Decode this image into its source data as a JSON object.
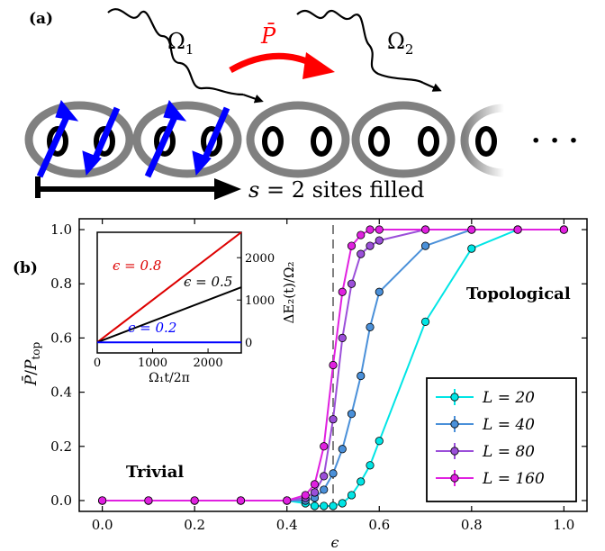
{
  "panel_a": {
    "label": "(a)",
    "omega1": "Ω",
    "omega1_sub": "1",
    "omega2": "Ω",
    "omega2_sub": "2",
    "pbar": "P̄",
    "filled_math": "s",
    "filled_text": " = 2 sites filled",
    "ellipsis": "· · ·",
    "colors": {
      "arrow": "#ff0000",
      "spin": "#0000ff",
      "ring": "#808080"
    }
  },
  "panel_b": {
    "label": "(b)",
    "xlabel": "ϵ",
    "ylabel_num": "P̄",
    "ylabel_den": "P",
    "ylabel_den_sub": "top",
    "trivial": "Trivial",
    "topological": "Topological",
    "crit_eps": 0.5
  },
  "chart_data": [
    {
      "type": "line",
      "xlim": [
        -0.05,
        1.05
      ],
      "ylim": [
        -0.04,
        1.04
      ],
      "xticks": [
        "0.0",
        "0.2",
        "0.4",
        "0.6",
        "0.8",
        "1.0"
      ],
      "yticks": [
        "0.0",
        "0.2",
        "0.4",
        "0.6",
        "0.8",
        "1.0"
      ],
      "xlabel": "ϵ",
      "ylabel": "P̄/P_top",
      "legend_position": "lower-right",
      "series": [
        {
          "name": "L = 20",
          "color": "#00e5e5",
          "x": [
            0.0,
            0.1,
            0.2,
            0.3,
            0.4,
            0.44,
            0.46,
            0.48,
            0.5,
            0.52,
            0.54,
            0.56,
            0.58,
            0.6,
            0.7,
            0.8,
            0.9,
            1.0
          ],
          "y": [
            0.0,
            0.0,
            0.0,
            0.0,
            0.0,
            -0.01,
            -0.02,
            -0.02,
            -0.02,
            -0.01,
            0.02,
            0.07,
            0.13,
            0.22,
            0.66,
            0.93,
            1.0,
            1.0
          ]
        },
        {
          "name": "L = 40",
          "color": "#4a90d9",
          "x": [
            0.0,
            0.1,
            0.2,
            0.3,
            0.4,
            0.44,
            0.46,
            0.48,
            0.5,
            0.52,
            0.54,
            0.56,
            0.58,
            0.6,
            0.7,
            0.8,
            0.9,
            1.0
          ],
          "y": [
            0.0,
            0.0,
            0.0,
            0.0,
            0.0,
            0.0,
            0.01,
            0.04,
            0.1,
            0.19,
            0.32,
            0.46,
            0.64,
            0.77,
            0.94,
            1.0,
            1.0,
            1.0
          ]
        },
        {
          "name": "L = 80",
          "color": "#9b4fd9",
          "x": [
            0.0,
            0.1,
            0.2,
            0.3,
            0.4,
            0.44,
            0.46,
            0.48,
            0.5,
            0.52,
            0.54,
            0.56,
            0.58,
            0.6,
            0.7,
            0.8,
            0.9,
            1.0
          ],
          "y": [
            0.0,
            0.0,
            0.0,
            0.0,
            0.0,
            0.01,
            0.03,
            0.09,
            0.3,
            0.6,
            0.8,
            0.91,
            0.94,
            0.96,
            1.0,
            1.0,
            1.0,
            1.0
          ]
        },
        {
          "name": "L = 160",
          "color": "#e020e0",
          "x": [
            0.0,
            0.1,
            0.2,
            0.3,
            0.4,
            0.44,
            0.46,
            0.48,
            0.5,
            0.52,
            0.54,
            0.56,
            0.58,
            0.6,
            0.7,
            0.8,
            0.9,
            1.0
          ],
          "y": [
            0.0,
            0.0,
            0.0,
            0.0,
            0.0,
            0.02,
            0.06,
            0.2,
            0.5,
            0.77,
            0.94,
            0.98,
            1.0,
            1.0,
            1.0,
            1.0,
            1.0,
            1.0
          ]
        }
      ]
    },
    {
      "type": "line",
      "xlim": [
        0,
        2600
      ],
      "ylim": [
        -250,
        2600
      ],
      "xticks": [
        "0",
        "1000",
        "2000"
      ],
      "yticks": [
        "0",
        "1000",
        "2000"
      ],
      "xlabel": "Ω₁t/2π",
      "ylabel": "ΔE₂(t)/Ω₂",
      "series": [
        {
          "name": "ϵ = 0.8",
          "color": "#dd0000",
          "x": [
            0,
            2600
          ],
          "y": [
            0,
            2600
          ]
        },
        {
          "name": "ϵ = 0.5",
          "color": "#000000",
          "x": [
            0,
            2600
          ],
          "y": [
            0,
            1300
          ]
        },
        {
          "name": "ϵ = 0.2",
          "color": "#0000ff",
          "x": [
            0,
            2600
          ],
          "y": [
            0,
            0
          ]
        }
      ]
    }
  ]
}
